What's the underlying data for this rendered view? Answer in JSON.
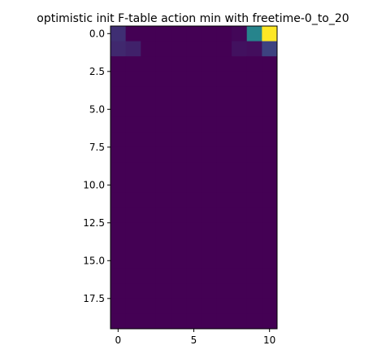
{
  "chart_data": {
    "type": "heatmap",
    "title": "optimistic init F-table action min with freetime-0_to_20",
    "xlabel": "",
    "ylabel": "",
    "colormap": "viridis",
    "rows": 20,
    "cols": 11,
    "vmin": 0,
    "vmax": 1,
    "xlim": [
      -0.5,
      10.5
    ],
    "ylim": [
      19.5,
      -0.5
    ],
    "x_ticks": [
      0,
      5,
      10
    ],
    "x_tick_labels": [
      "0",
      "5",
      "10"
    ],
    "y_ticks": [
      0.0,
      2.5,
      5.0,
      7.5,
      10.0,
      12.5,
      15.0,
      17.5
    ],
    "y_tick_labels": [
      "0.0",
      "2.5",
      "5.0",
      "7.5",
      "10.0",
      "12.5",
      "15.0",
      "17.5"
    ],
    "grid": false,
    "values": [
      [
        0.14,
        0.0,
        0.0,
        0.0,
        0.0,
        0.0,
        0.0,
        0.0,
        0.02,
        0.45,
        1.0
      ],
      [
        0.12,
        0.1,
        0.0,
        0.0,
        0.0,
        0.0,
        0.0,
        0.0,
        0.05,
        0.04,
        0.2
      ],
      [
        0,
        0,
        0,
        0,
        0,
        0,
        0,
        0,
        0,
        0,
        0
      ],
      [
        0,
        0,
        0,
        0,
        0,
        0,
        0,
        0,
        0,
        0,
        0
      ],
      [
        0,
        0,
        0,
        0,
        0,
        0,
        0,
        0,
        0,
        0,
        0
      ],
      [
        0,
        0,
        0,
        0,
        0,
        0,
        0,
        0,
        0,
        0,
        0
      ],
      [
        0,
        0,
        0,
        0,
        0,
        0,
        0,
        0,
        0,
        0,
        0
      ],
      [
        0,
        0,
        0,
        0,
        0,
        0,
        0,
        0,
        0,
        0,
        0
      ],
      [
        0,
        0,
        0,
        0,
        0,
        0,
        0,
        0,
        0,
        0,
        0
      ],
      [
        0,
        0,
        0,
        0,
        0,
        0,
        0,
        0,
        0,
        0,
        0
      ],
      [
        0,
        0,
        0,
        0,
        0,
        0,
        0,
        0,
        0,
        0,
        0
      ],
      [
        0,
        0,
        0,
        0,
        0,
        0,
        0,
        0,
        0,
        0,
        0
      ],
      [
        0,
        0,
        0,
        0,
        0,
        0,
        0,
        0,
        0,
        0,
        0
      ],
      [
        0,
        0,
        0,
        0,
        0,
        0,
        0,
        0,
        0,
        0,
        0
      ],
      [
        0,
        0,
        0,
        0,
        0,
        0,
        0,
        0,
        0,
        0,
        0
      ],
      [
        0,
        0,
        0,
        0,
        0,
        0,
        0,
        0,
        0,
        0,
        0
      ],
      [
        0,
        0,
        0,
        0,
        0,
        0,
        0,
        0,
        0,
        0,
        0
      ],
      [
        0,
        0,
        0,
        0,
        0,
        0,
        0,
        0,
        0,
        0,
        0
      ],
      [
        0,
        0,
        0,
        0,
        0,
        0,
        0,
        0,
        0,
        0,
        0
      ],
      [
        0,
        0,
        0,
        0,
        0,
        0,
        0,
        0,
        0,
        0,
        0
      ]
    ]
  }
}
